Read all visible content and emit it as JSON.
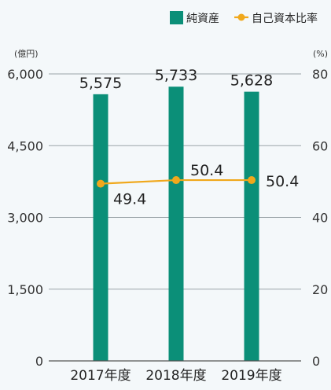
{
  "chart_data": {
    "type": "bar",
    "categories": [
      "2017年度",
      "2018年度",
      "2019年度"
    ],
    "series": [
      {
        "name": "純資産",
        "type": "bar",
        "axis": "left",
        "color": "#0b8f78",
        "values": [
          5575,
          5733,
          5628
        ]
      },
      {
        "name": "自己資本比率",
        "type": "line",
        "axis": "right",
        "color": "#f0a81c",
        "values": [
          49.4,
          50.4,
          50.4
        ]
      }
    ],
    "left_axis": {
      "unit": "(億円)",
      "ylim": [
        0,
        6000
      ],
      "ticks": [
        0,
        1500,
        3000,
        4500,
        6000
      ],
      "tick_labels": [
        "0",
        "1,500",
        "3,000",
        "4,500",
        "6,000"
      ]
    },
    "right_axis": {
      "unit": "(%)",
      "ylim": [
        0,
        80
      ],
      "ticks": [
        0,
        20,
        40,
        60,
        80
      ],
      "tick_labels": [
        "0",
        "20",
        "40",
        "60",
        "80"
      ]
    },
    "bar_labels": [
      "5,575",
      "5,733",
      "5,628"
    ],
    "line_labels": [
      "49.4",
      "50.4",
      "50.4"
    ],
    "grid": true,
    "legend_position": "top-right"
  }
}
